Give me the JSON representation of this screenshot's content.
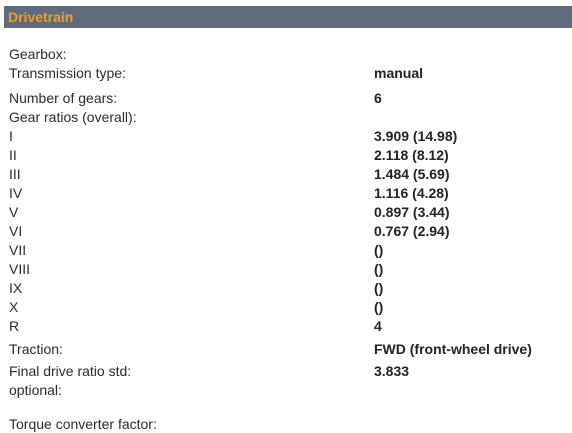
{
  "section": {
    "title": "Drivetrain"
  },
  "labels": {
    "gearbox": "Gearbox:",
    "transmission_type": "Transmission type:",
    "number_of_gears": "Number of gears:",
    "gear_ratios": "Gear ratios (overall):",
    "g1": "I",
    "g2": "II",
    "g3": "III",
    "g4": "IV",
    "g5": "V",
    "g6": "VI",
    "g7": "VII",
    "g8": "VIII",
    "g9": "IX",
    "g10": "X",
    "reverse": "R",
    "traction": "Traction:",
    "final_drive_ratio": "Final drive ratio std:",
    "optional": "optional:",
    "torque_converter": "Torque converter factor:"
  },
  "values": {
    "transmission_type": "manual",
    "number_of_gears": "6",
    "g1": "3.909 (14.98)",
    "g2": "2.118 (8.12)",
    "g3": "1.484 (5.69)",
    "g4": "1.116 (4.28)",
    "g5": "0.897 (3.44)",
    "g6": "0.767 (2.94)",
    "g7": "()",
    "g8": "()",
    "g9": "()",
    "g10": "()",
    "reverse": "4",
    "traction": "FWD (front-wheel drive)",
    "final_drive_ratio": "3.833"
  }
}
